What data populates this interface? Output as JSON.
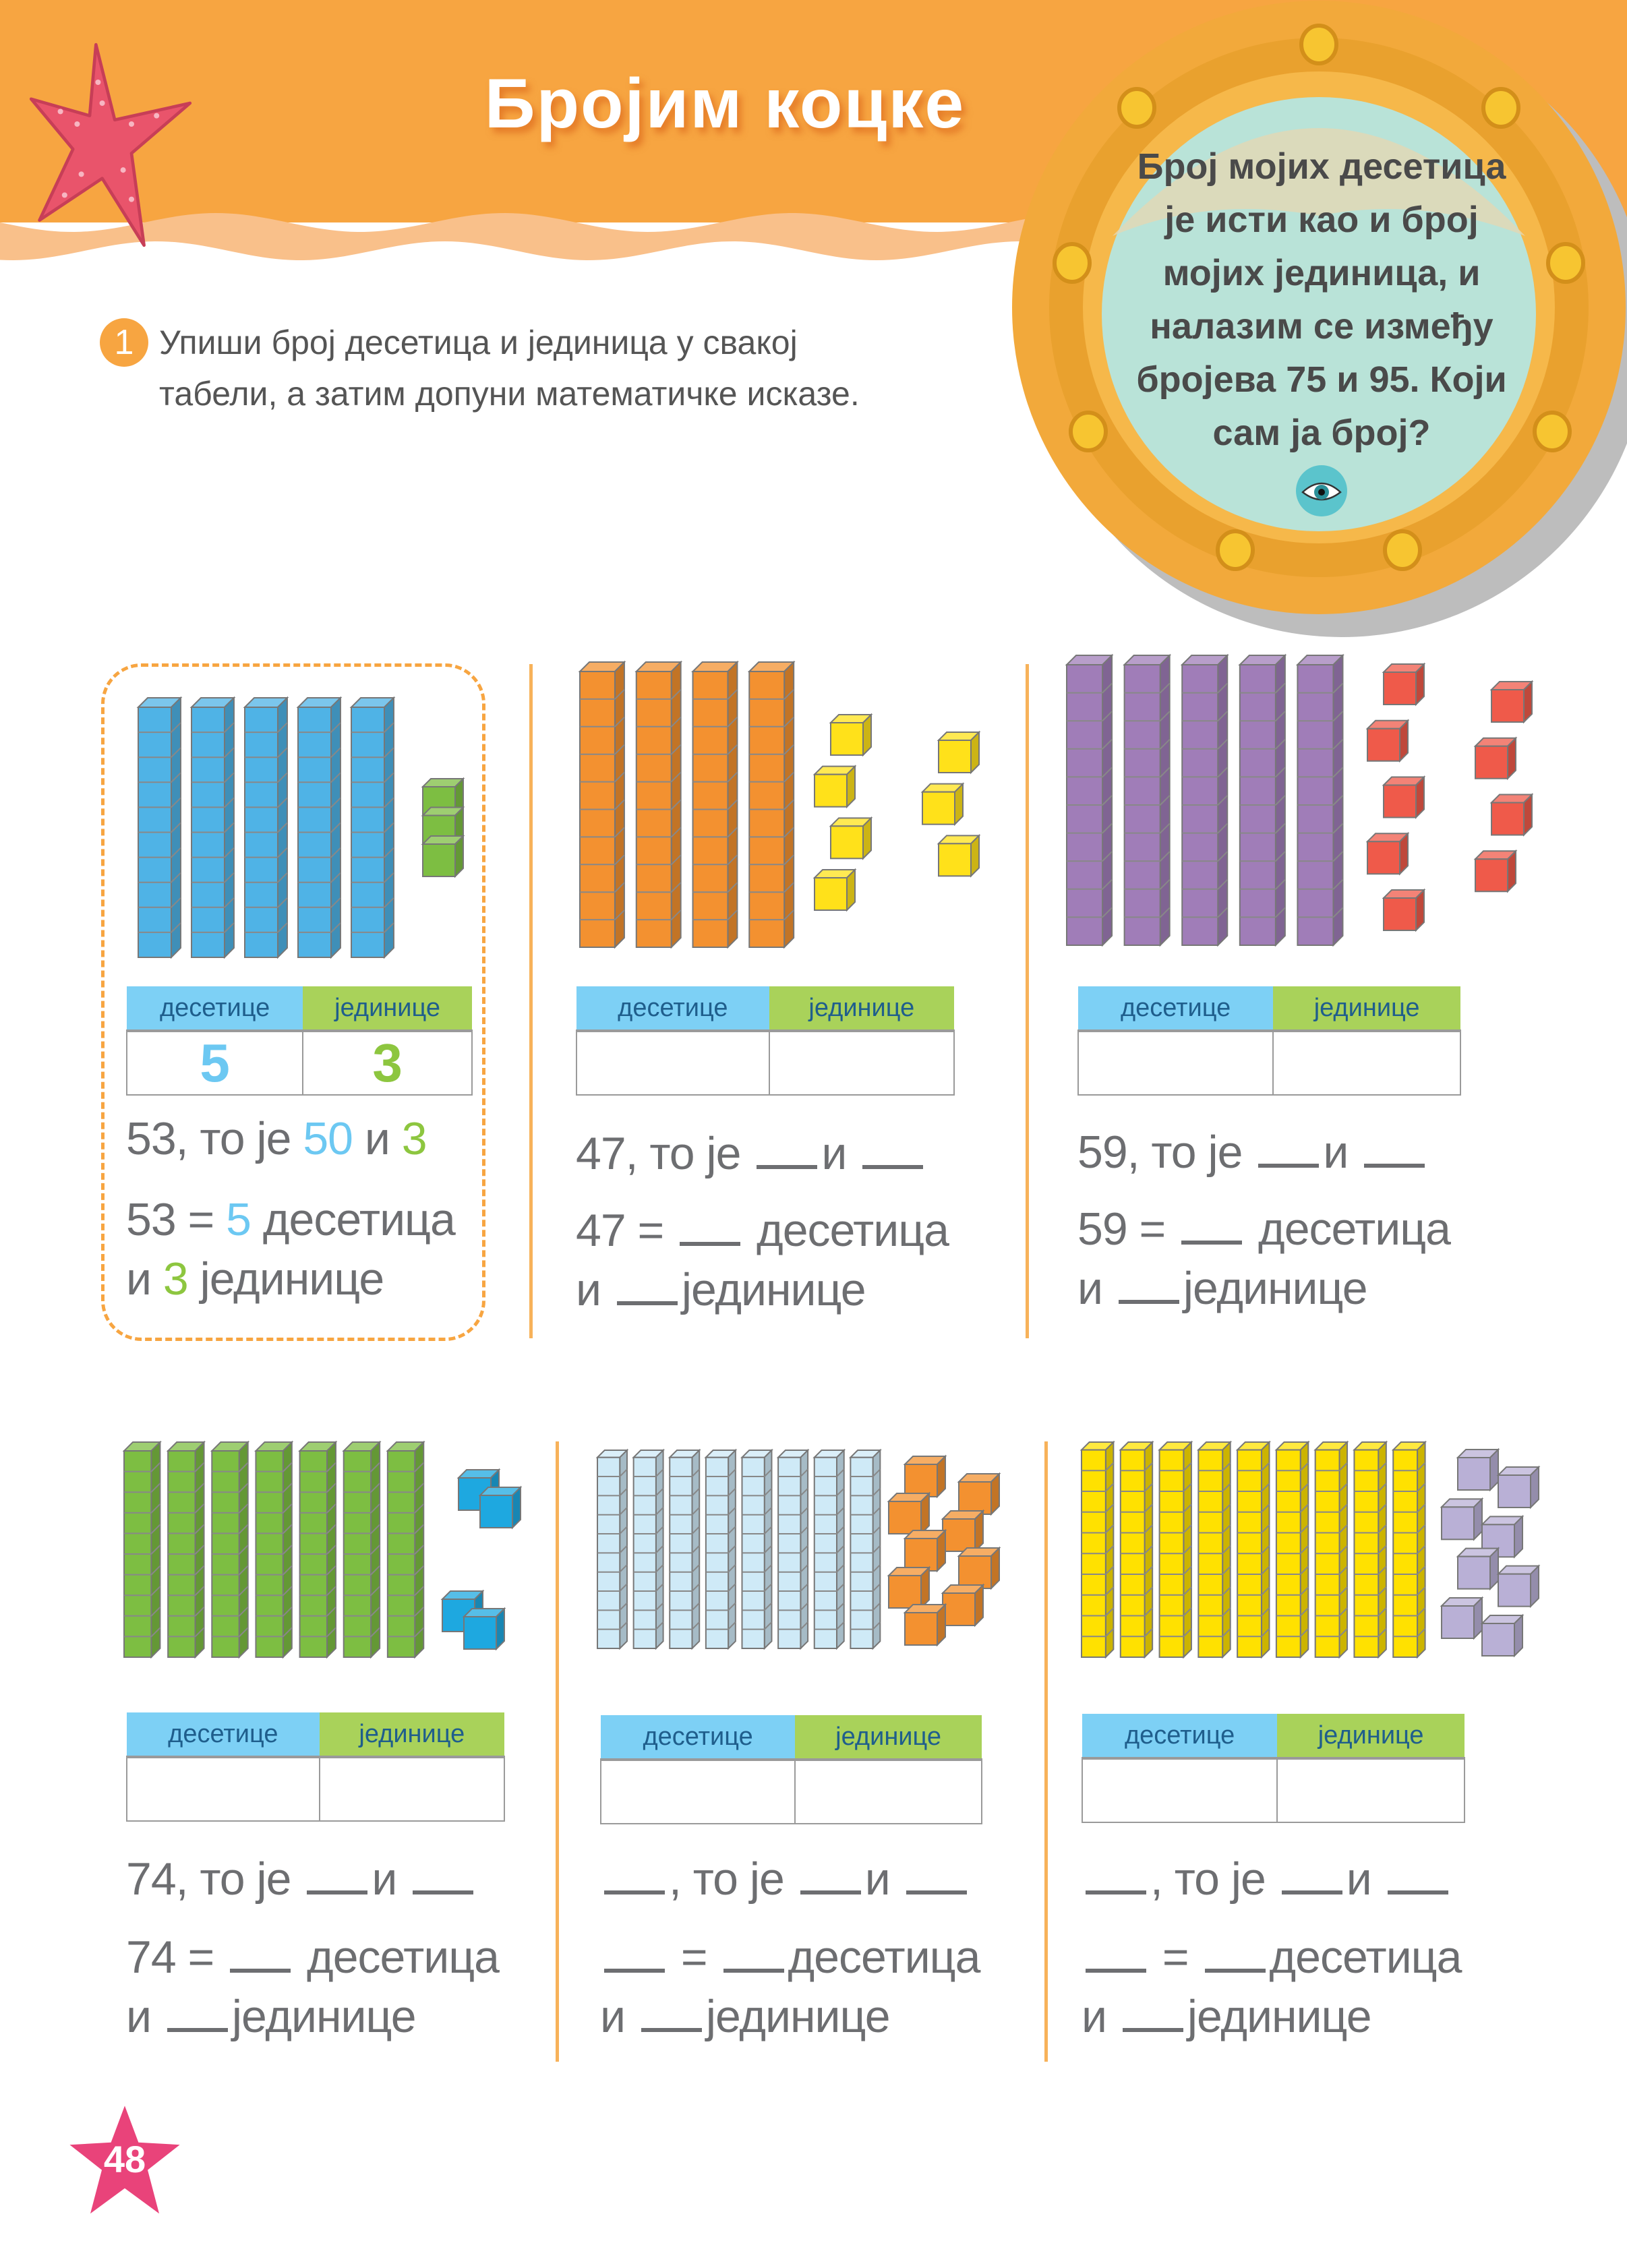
{
  "title": "Бројим коцке",
  "riddle": {
    "lines": [
      "Број мојих десетица",
      "је исти као и број",
      "мојих јединица, и",
      "налазим се између",
      "бројева 75 и 95. Који",
      "сам ја број?"
    ],
    "icon": "eye-icon"
  },
  "task": {
    "number": "1",
    "lines": [
      "Упиши број десетица и јединица у свакој",
      "табели, а затим допуни математичке исказе."
    ]
  },
  "colors": {
    "header": "#F7A541",
    "tens_header": "#7DD0F5",
    "units_header": "#A9D25A",
    "tens_value": "#6CC8F2",
    "units_value": "#8DC63F",
    "text": "#6d6e71"
  },
  "table_headers": {
    "tens": "десетице",
    "units": "јединице"
  },
  "panels": [
    {
      "id": "p1",
      "example": true,
      "tens_rods": 5,
      "unit_cubes": 3,
      "rod_color": "#4FB3E6",
      "unit_color": "#7DBE42",
      "tens_value": "5",
      "units_value": "3",
      "lines": [
        [
          {
            "t": "53, то је "
          },
          {
            "t": "50",
            "c": "tens"
          },
          {
            "t": " и "
          },
          {
            "t": "3",
            "c": "units"
          }
        ],
        [
          {
            "t": "53 = "
          },
          {
            "t": "5",
            "c": "tens"
          },
          {
            "t": " десетица"
          }
        ],
        [
          {
            "t": "и "
          },
          {
            "t": "3",
            "c": "units"
          },
          {
            "t": " јединице"
          }
        ]
      ]
    },
    {
      "id": "p2",
      "tens_rods": 4,
      "unit_cubes": 7,
      "rod_color": "#F39130",
      "unit_color": "#FFE11A",
      "tens_value": "",
      "units_value": "",
      "lines": [
        [
          {
            "t": "47, то је "
          },
          {
            "b": 1
          },
          {
            "t": "и "
          },
          {
            "b": 1
          }
        ],
        [
          {
            "t": "47 = "
          },
          {
            "b": 1
          },
          {
            "t": " десетица"
          }
        ],
        [
          {
            "t": "и "
          },
          {
            "b": 1
          },
          {
            "t": "јединице"
          }
        ]
      ]
    },
    {
      "id": "p3",
      "tens_rods": 5,
      "unit_cubes": 9,
      "rod_color": "#A07DB8",
      "unit_color": "#EF5A4A",
      "tens_value": "",
      "units_value": "",
      "lines": [
        [
          {
            "t": "59, то је "
          },
          {
            "b": 1
          },
          {
            "t": "и "
          },
          {
            "b": 1
          }
        ],
        [
          {
            "t": "59 = "
          },
          {
            "b": 1
          },
          {
            "t": " десетица"
          }
        ],
        [
          {
            "t": "и "
          },
          {
            "b": 1
          },
          {
            "t": "јединице"
          }
        ]
      ]
    },
    {
      "id": "p4",
      "tens_rods": 7,
      "unit_cubes": 4,
      "rod_color": "#7DBE42",
      "unit_color": "#1EA8E0",
      "tens_value": "",
      "units_value": "",
      "lines": [
        [
          {
            "t": "74, то је "
          },
          {
            "b": 1
          },
          {
            "t": "и "
          },
          {
            "b": 1
          }
        ],
        [
          {
            "t": "74 = "
          },
          {
            "b": 1
          },
          {
            "t": " десетица"
          }
        ],
        [
          {
            "t": "и "
          },
          {
            "b": 1
          },
          {
            "t": "јединице"
          }
        ]
      ]
    },
    {
      "id": "p5",
      "tens_rods": 8,
      "unit_cubes": 9,
      "rod_color": "#CFEAF7",
      "unit_color": "#F39130",
      "tens_value": "",
      "units_value": "",
      "lines": [
        [
          {
            "b": 1
          },
          {
            "t": ", то је "
          },
          {
            "b": 1
          },
          {
            "t": "и "
          },
          {
            "b": 1
          }
        ],
        [
          {
            "b": 1
          },
          {
            "t": " = "
          },
          {
            "b": 1
          },
          {
            "t": "десетица"
          }
        ],
        [
          {
            "t": "и "
          },
          {
            "b": 1
          },
          {
            "t": "јединице"
          }
        ]
      ]
    },
    {
      "id": "p6",
      "tens_rods": 9,
      "unit_cubes": 8,
      "rod_color": "#FFE100",
      "unit_color": "#B9B0D6",
      "tens_value": "",
      "units_value": "",
      "lines": [
        [
          {
            "b": 1
          },
          {
            "t": ", то је "
          },
          {
            "b": 1
          },
          {
            "t": "и "
          },
          {
            "b": 1
          }
        ],
        [
          {
            "b": 1
          },
          {
            "t": " = "
          },
          {
            "b": 1
          },
          {
            "t": "десетица"
          }
        ],
        [
          {
            "t": "и "
          },
          {
            "b": 1
          },
          {
            "t": "јединице"
          }
        ]
      ]
    }
  ],
  "page_number": "48"
}
